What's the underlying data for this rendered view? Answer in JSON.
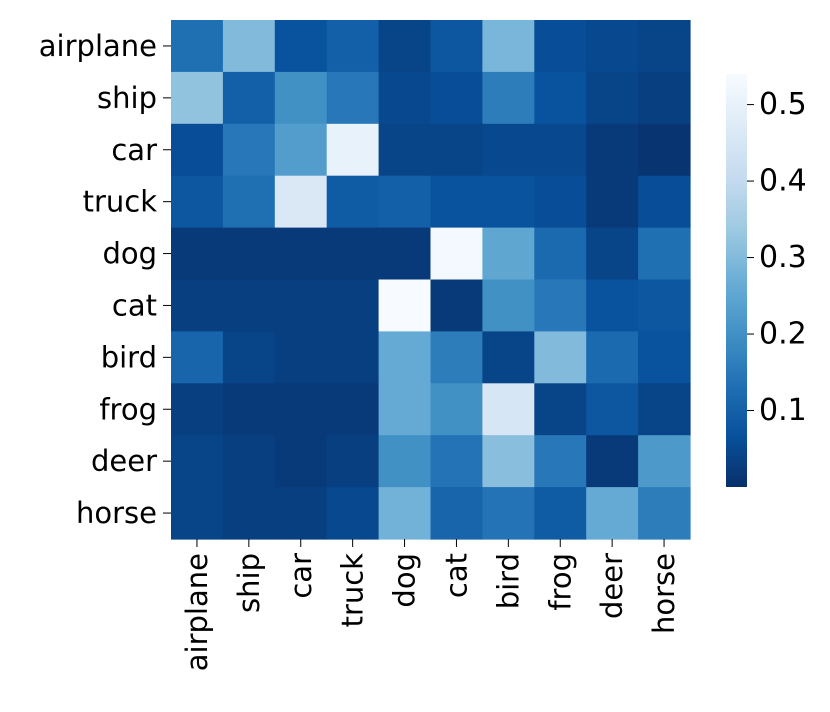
{
  "chart_data": {
    "type": "heatmap",
    "title": "",
    "xlabel": "",
    "ylabel": "",
    "colormap": "Blues_r",
    "colormap_stops": [
      "#08306b",
      "#08519c",
      "#2171b5",
      "#4292c6",
      "#6baed6",
      "#9ecae1",
      "#c6dbef",
      "#deebf7",
      "#f7fbff"
    ],
    "color_range": [
      0.0,
      0.54
    ],
    "x_categories": [
      "airplane",
      "ship",
      "car",
      "truck",
      "dog",
      "cat",
      "bird",
      "frog",
      "deer",
      "horse"
    ],
    "y_categories": [
      "airplane",
      "ship",
      "car",
      "truck",
      "dog",
      "cat",
      "bird",
      "frog",
      "deer",
      "horse"
    ],
    "values": [
      [
        0.13,
        0.3,
        0.07,
        0.1,
        0.04,
        0.08,
        0.29,
        0.06,
        0.05,
        0.04
      ],
      [
        0.32,
        0.1,
        0.2,
        0.15,
        0.05,
        0.06,
        0.16,
        0.07,
        0.04,
        0.03
      ],
      [
        0.06,
        0.15,
        0.23,
        0.5,
        0.04,
        0.04,
        0.05,
        0.05,
        0.02,
        0.01
      ],
      [
        0.08,
        0.13,
        0.46,
        0.09,
        0.1,
        0.07,
        0.07,
        0.06,
        0.02,
        0.06
      ],
      [
        0.02,
        0.02,
        0.02,
        0.02,
        0.02,
        0.53,
        0.25,
        0.12,
        0.04,
        0.13
      ],
      [
        0.03,
        0.03,
        0.03,
        0.03,
        0.54,
        0.02,
        0.2,
        0.15,
        0.07,
        0.08
      ],
      [
        0.11,
        0.04,
        0.03,
        0.03,
        0.26,
        0.16,
        0.04,
        0.3,
        0.12,
        0.07
      ],
      [
        0.03,
        0.02,
        0.02,
        0.02,
        0.26,
        0.2,
        0.45,
        0.04,
        0.08,
        0.04
      ],
      [
        0.04,
        0.03,
        0.02,
        0.03,
        0.2,
        0.14,
        0.31,
        0.15,
        0.02,
        0.22
      ],
      [
        0.04,
        0.03,
        0.03,
        0.05,
        0.28,
        0.11,
        0.14,
        0.09,
        0.26,
        0.16
      ]
    ],
    "colorbar": {
      "ticks": [
        0.1,
        0.2,
        0.3,
        0.4,
        0.5
      ],
      "tick_labels": [
        "0.1",
        "0.2",
        "0.3",
        "0.4",
        "0.5"
      ]
    },
    "legend": "none",
    "grid": false
  }
}
